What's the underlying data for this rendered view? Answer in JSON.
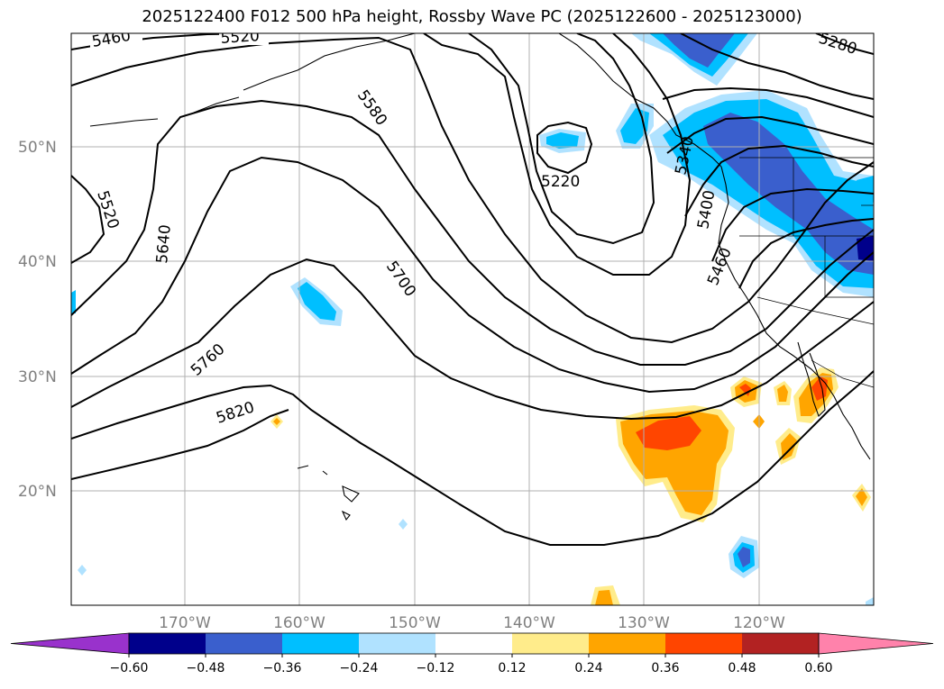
{
  "title": "2025122400 F012 500 hPa height, Rossby Wave PC (2025122600 - 2025123000)",
  "latitude_labels": [
    "50°N",
    "40°N",
    "30°N",
    "20°N"
  ],
  "longitude_labels": [
    "170°W",
    "160°W",
    "150°W",
    "140°W",
    "130°W",
    "120°W"
  ],
  "contour_labels": [
    "5460",
    "5520",
    "5580",
    "5520",
    "5640",
    "5700",
    "5760",
    "5820",
    "5220",
    "5280",
    "5340",
    "5400",
    "5460"
  ],
  "colorbar": {
    "ticks": [
      "−0.60",
      "−0.48",
      "−0.36",
      "−0.24",
      "−0.12",
      "0.12",
      "0.24",
      "0.36",
      "0.48",
      "0.60"
    ],
    "colors": [
      "#9932cc",
      "#00008b",
      "#3a5fcd",
      "#00bfff",
      "#b0e2ff",
      "#ffffff",
      "#ffec8b",
      "#ffa500",
      "#ff4500",
      "#b22222",
      "#ff82ab"
    ]
  }
}
